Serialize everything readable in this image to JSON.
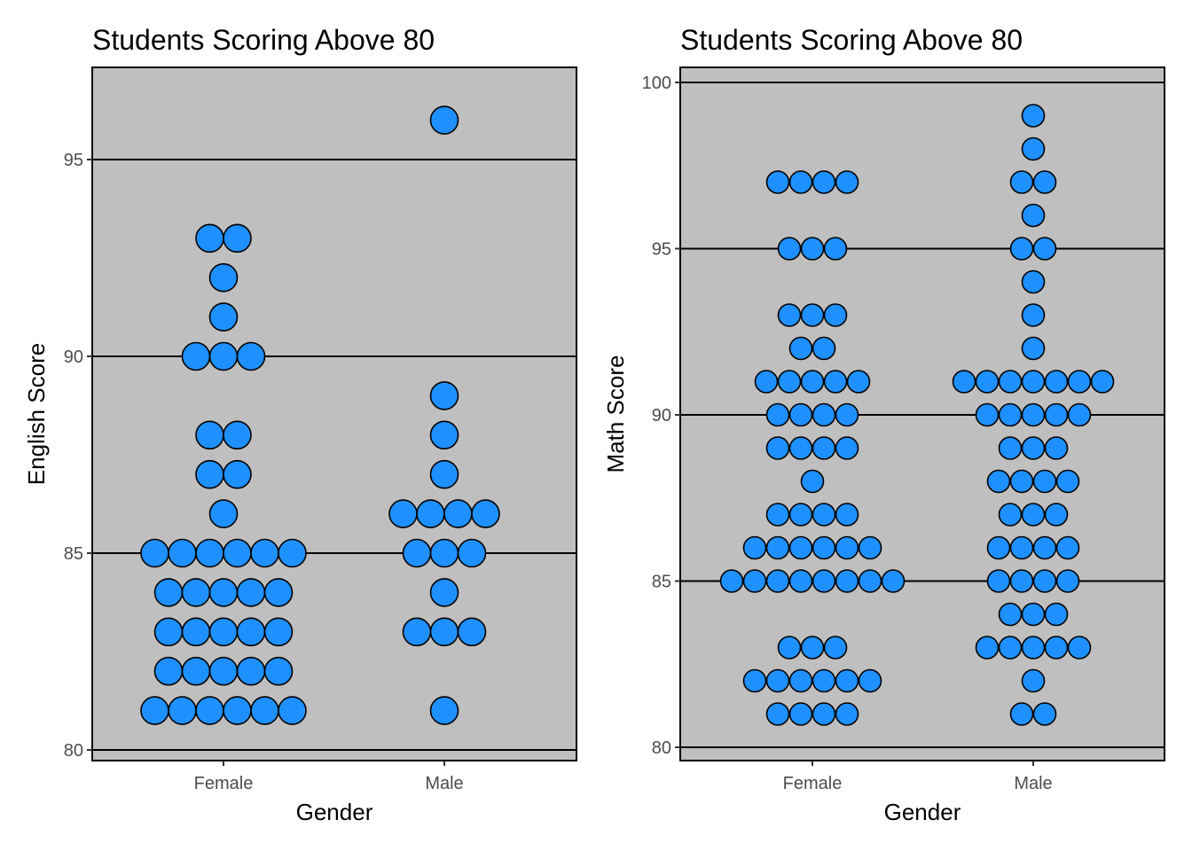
{
  "chart_data": [
    {
      "type": "dotplot",
      "title": "Students Scoring Above 80",
      "xlabel": "Gender",
      "ylabel": "English Score",
      "categories": [
        "Female",
        "Male"
      ],
      "ylim": [
        80,
        97
      ],
      "yticks": [
        80,
        85,
        90,
        95
      ],
      "grid": "horizontal at major ticks",
      "background": "#bfbfbf",
      "dot_color": "#1e90ff",
      "counts": {
        "Female": {
          "81": 6,
          "82": 5,
          "83": 5,
          "84": 5,
          "85": 6,
          "86": 1,
          "87": 2,
          "88": 2,
          "90": 3,
          "91": 1,
          "92": 1,
          "93": 2
        },
        "Male": {
          "81": 1,
          "83": 3,
          "84": 1,
          "85": 3,
          "86": 4,
          "87": 1,
          "88": 1,
          "89": 1,
          "96": 1
        }
      }
    },
    {
      "type": "dotplot",
      "title": "Students Scoring Above 80",
      "xlabel": "Gender",
      "ylabel": "Math Score",
      "categories": [
        "Female",
        "Male"
      ],
      "ylim": [
        80,
        100
      ],
      "yticks": [
        80,
        85,
        90,
        95,
        100
      ],
      "grid": "horizontal at major ticks",
      "background": "#bfbfbf",
      "dot_color": "#1e90ff",
      "counts": {
        "Female": {
          "81": 4,
          "82": 6,
          "83": 3,
          "85": 8,
          "86": 6,
          "87": 4,
          "88": 1,
          "89": 4,
          "90": 4,
          "91": 5,
          "92": 2,
          "93": 3,
          "95": 3,
          "97": 4
        },
        "Male": {
          "81": 2,
          "82": 1,
          "83": 5,
          "84": 3,
          "85": 4,
          "86": 4,
          "87": 3,
          "88": 4,
          "89": 3,
          "90": 5,
          "91": 7,
          "92": 1,
          "93": 1,
          "94": 1,
          "95": 2,
          "96": 1,
          "97": 2,
          "98": 1,
          "99": 1
        }
      }
    }
  ]
}
